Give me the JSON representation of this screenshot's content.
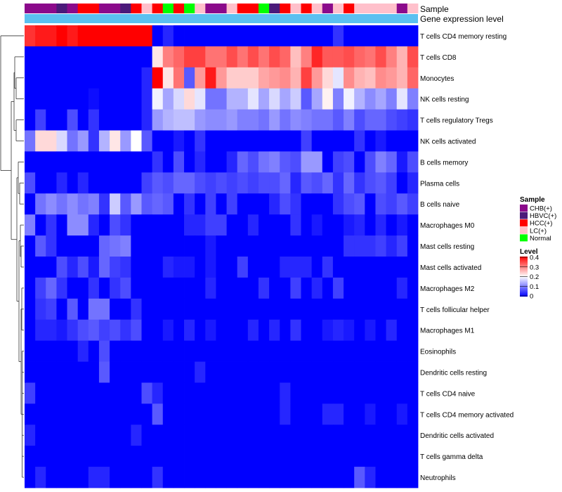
{
  "chart_data": {
    "type": "heatmap",
    "annotation_tracks": {
      "sample_label": "Sample",
      "gene_label": "Gene expression level",
      "sample_groups": [
        "CHB(+)",
        "CHB(+)",
        "CHB(+)",
        "HBVC(+)",
        "CHB(+)",
        "HCC(+)",
        "HCC(+)",
        "CHB(+)",
        "CHB(+)",
        "HBVC(+)",
        "HCC(+)",
        "LC(+)",
        "HCC(+)",
        "Normal",
        "HCC(+)",
        "Normal",
        "LC(+)",
        "CHB(+)",
        "CHB(+)",
        "LC(+)",
        "HCC(+)",
        "HCC(+)",
        "Normal",
        "HBVC(+)",
        "HCC(+)",
        "LC(+)",
        "HCC(+)",
        "LC(+)",
        "CHB(+)",
        "LC(+)",
        "HCC(+)",
        "LC(+)",
        "LC(+)",
        "LC(+)",
        "LC(+)",
        "CHB(+)",
        "LC(+)"
      ]
    },
    "rows": [
      "T cells CD4 memory resting",
      "T cells CD8",
      "Monocytes",
      "NK cells resting",
      "T cells regulatory  Tregs",
      "NK cells activated",
      "B cells memory",
      "Plasma cells",
      "B cells naive",
      "Macrophages M0",
      "Mast cells resting",
      "Mast cells activated",
      "Macrophages M2",
      "T cells follicular helper",
      "Macrophages M1",
      "Eosinophils",
      "Dendritic cells resting",
      "T cells CD4 naive",
      "T cells CD4 memory activated",
      "Dendritic cells activated",
      "T cells gamma delta",
      "Neutrophils"
    ],
    "values": [
      [
        0.36,
        0.38,
        0.38,
        0.4,
        0.38,
        0.4,
        0.4,
        0.4,
        0.4,
        0.4,
        0.4,
        0.4,
        0.0,
        0.03,
        0.0,
        0.0,
        0.0,
        0.0,
        0.0,
        0.0,
        0.0,
        0.0,
        0.0,
        0.0,
        0.0,
        0.0,
        0.0,
        0.0,
        0.0,
        0.04,
        0.0,
        0.0,
        0.0,
        0.0,
        0.0,
        0.0,
        0.0
      ],
      [
        0.0,
        0.0,
        0.0,
        0.0,
        0.0,
        0.0,
        0.0,
        0.0,
        0.0,
        0.0,
        0.0,
        0.0,
        0.22,
        0.3,
        0.32,
        0.35,
        0.35,
        0.31,
        0.31,
        0.34,
        0.31,
        0.34,
        0.31,
        0.34,
        0.32,
        0.25,
        0.3,
        0.37,
        0.33,
        0.33,
        0.34,
        0.32,
        0.31,
        0.34,
        0.3,
        0.26,
        0.34
      ],
      [
        0.0,
        0.0,
        0.0,
        0.0,
        0.0,
        0.0,
        0.0,
        0.0,
        0.0,
        0.0,
        0.0,
        0.03,
        0.4,
        0.22,
        0.31,
        0.07,
        0.28,
        0.38,
        0.28,
        0.24,
        0.24,
        0.24,
        0.27,
        0.28,
        0.29,
        0.26,
        0.35,
        0.28,
        0.23,
        0.18,
        0.29,
        0.26,
        0.25,
        0.29,
        0.28,
        0.26,
        0.32
      ],
      [
        0.0,
        0.0,
        0.0,
        0.0,
        0.0,
        0.0,
        0.01,
        0.0,
        0.0,
        0.0,
        0.0,
        0.03,
        0.19,
        0.13,
        0.17,
        0.23,
        0.18,
        0.09,
        0.09,
        0.14,
        0.14,
        0.18,
        0.13,
        0.17,
        0.13,
        0.16,
        0.07,
        0.13,
        0.21,
        0.1,
        0.19,
        0.14,
        0.11,
        0.13,
        0.1,
        0.18,
        0.1
      ],
      [
        0.0,
        0.05,
        0.0,
        0.0,
        0.06,
        0.0,
        0.04,
        0.0,
        0.0,
        0.0,
        0.0,
        0.03,
        0.12,
        0.14,
        0.15,
        0.15,
        0.12,
        0.11,
        0.11,
        0.12,
        0.1,
        0.1,
        0.09,
        0.12,
        0.09,
        0.11,
        0.1,
        0.09,
        0.09,
        0.07,
        0.1,
        0.06,
        0.08,
        0.08,
        0.06,
        0.05,
        0.04
      ],
      [
        0.09,
        0.23,
        0.23,
        0.17,
        0.09,
        0.12,
        0.04,
        0.14,
        0.22,
        0.12,
        0.2,
        0.07,
        0.0,
        0.0,
        0.02,
        0.0,
        0.04,
        0.0,
        0.0,
        0.0,
        0.0,
        0.0,
        0.0,
        0.0,
        0.0,
        0.0,
        0.05,
        0.0,
        0.0,
        0.0,
        0.0,
        0.04,
        0.0,
        0.02,
        0.0,
        0.0,
        0.0
      ],
      [
        0.0,
        0.0,
        0.0,
        0.0,
        0.0,
        0.0,
        0.0,
        0.0,
        0.0,
        0.0,
        0.0,
        0.0,
        0.04,
        0.0,
        0.06,
        0.0,
        0.03,
        0.0,
        0.0,
        0.03,
        0.08,
        0.06,
        0.09,
        0.1,
        0.07,
        0.06,
        0.12,
        0.12,
        0.0,
        0.05,
        0.06,
        0.0,
        0.06,
        0.1,
        0.08,
        0.02,
        0.06
      ],
      [
        0.06,
        0.0,
        0.0,
        0.03,
        0.0,
        0.03,
        0.0,
        0.0,
        0.0,
        0.0,
        0.0,
        0.05,
        0.07,
        0.06,
        0.08,
        0.08,
        0.06,
        0.05,
        0.06,
        0.05,
        0.06,
        0.05,
        0.06,
        0.06,
        0.08,
        0.03,
        0.07,
        0.06,
        0.08,
        0.04,
        0.08,
        0.04,
        0.06,
        0.07,
        0.05,
        0.0,
        0.03
      ],
      [
        0.0,
        0.09,
        0.11,
        0.09,
        0.11,
        0.09,
        0.1,
        0.04,
        0.16,
        0.07,
        0.12,
        0.07,
        0.08,
        0.07,
        0.0,
        0.04,
        0.0,
        0.05,
        0.0,
        0.05,
        0.0,
        0.0,
        0.0,
        0.03,
        0.06,
        0.04,
        0.0,
        0.0,
        0.0,
        0.04,
        0.06,
        0.07,
        0.0,
        0.06,
        0.05,
        0.07,
        0.05
      ],
      [
        0.1,
        0.0,
        0.04,
        0.0,
        0.11,
        0.11,
        0.03,
        0.0,
        0.06,
        0.04,
        0.0,
        0.0,
        0.0,
        0.0,
        0.0,
        0.03,
        0.03,
        0.05,
        0.05,
        0.0,
        0.0,
        0.03,
        0.0,
        0.0,
        0.0,
        0.04,
        0.0,
        0.02,
        0.0,
        0.0,
        0.02,
        0.03,
        0.0,
        0.03,
        0.0,
        0.02,
        0.0
      ],
      [
        0.0,
        0.07,
        0.04,
        0.0,
        0.0,
        0.0,
        0.0,
        0.08,
        0.09,
        0.1,
        0.0,
        0.0,
        0.0,
        0.0,
        0.0,
        0.0,
        0.0,
        0.02,
        0.0,
        0.0,
        0.0,
        0.0,
        0.0,
        0.0,
        0.0,
        0.0,
        0.0,
        0.0,
        0.0,
        0.0,
        0.04,
        0.04,
        0.04,
        0.05,
        0.03,
        0.05,
        0.0
      ],
      [
        0.0,
        0.0,
        0.0,
        0.06,
        0.03,
        0.06,
        0.02,
        0.08,
        0.05,
        0.04,
        0.0,
        0.0,
        0.0,
        0.03,
        0.02,
        0.02,
        0.0,
        0.02,
        0.0,
        0.0,
        0.05,
        0.0,
        0.0,
        0.0,
        0.03,
        0.03,
        0.03,
        0.0,
        0.04,
        0.0,
        0.0,
        0.0,
        0.0,
        0.0,
        0.0,
        0.0,
        0.0
      ],
      [
        0.0,
        0.05,
        0.08,
        0.04,
        0.0,
        0.0,
        0.04,
        0.0,
        0.04,
        0.06,
        0.0,
        0.0,
        0.0,
        0.0,
        0.0,
        0.0,
        0.0,
        0.03,
        0.0,
        0.0,
        0.0,
        0.0,
        0.04,
        0.0,
        0.0,
        0.05,
        0.0,
        0.03,
        0.0,
        0.05,
        0.0,
        0.0,
        0.0,
        0.0,
        0.0,
        0.03,
        0.0
      ],
      [
        0.0,
        0.04,
        0.05,
        0.0,
        0.07,
        0.0,
        0.09,
        0.09,
        0.0,
        0.0,
        0.04,
        0.0,
        0.0,
        0.0,
        0.0,
        0.0,
        0.0,
        0.0,
        0.0,
        0.0,
        0.0,
        0.0,
        0.0,
        0.0,
        0.0,
        0.0,
        0.0,
        0.0,
        0.0,
        0.0,
        0.0,
        0.0,
        0.0,
        0.0,
        0.0,
        0.0,
        0.0
      ],
      [
        0.0,
        0.03,
        0.03,
        0.02,
        0.04,
        0.06,
        0.07,
        0.05,
        0.06,
        0.04,
        0.06,
        0.0,
        0.0,
        0.02,
        0.0,
        0.03,
        0.0,
        0.02,
        0.0,
        0.0,
        0.0,
        0.03,
        0.0,
        0.03,
        0.0,
        0.04,
        0.0,
        0.0,
        0.02,
        0.03,
        0.02,
        0.0,
        0.02,
        0.0,
        0.03,
        0.0,
        0.0
      ],
      [
        0.0,
        0.0,
        0.0,
        0.0,
        0.0,
        0.03,
        0.0,
        0.06,
        0.0,
        0.0,
        0.0,
        0.0,
        0.0,
        0.0,
        0.0,
        0.0,
        0.0,
        0.0,
        0.0,
        0.0,
        0.0,
        0.0,
        0.0,
        0.0,
        0.0,
        0.0,
        0.0,
        0.0,
        0.0,
        0.0,
        0.0,
        0.0,
        0.0,
        0.0,
        0.0,
        0.0,
        0.0
      ],
      [
        0.0,
        0.0,
        0.0,
        0.0,
        0.0,
        0.0,
        0.0,
        0.07,
        0.0,
        0.0,
        0.0,
        0.0,
        0.0,
        0.0,
        0.0,
        0.0,
        0.03,
        0.0,
        0.0,
        0.0,
        0.0,
        0.0,
        0.0,
        0.0,
        0.0,
        0.0,
        0.0,
        0.0,
        0.0,
        0.0,
        0.0,
        0.0,
        0.0,
        0.0,
        0.0,
        0.0,
        0.0
      ],
      [
        0.05,
        0.0,
        0.0,
        0.0,
        0.0,
        0.0,
        0.0,
        0.0,
        0.0,
        0.0,
        0.0,
        0.06,
        0.03,
        0.0,
        0.0,
        0.0,
        0.0,
        0.0,
        0.0,
        0.0,
        0.0,
        0.0,
        0.0,
        0.0,
        0.03,
        0.0,
        0.0,
        0.0,
        0.0,
        0.0,
        0.0,
        0.0,
        0.0,
        0.0,
        0.0,
        0.0,
        0.0
      ],
      [
        0.0,
        0.0,
        0.0,
        0.0,
        0.0,
        0.0,
        0.0,
        0.0,
        0.0,
        0.0,
        0.0,
        0.0,
        0.07,
        0.0,
        0.0,
        0.0,
        0.0,
        0.0,
        0.0,
        0.0,
        0.0,
        0.0,
        0.0,
        0.0,
        0.03,
        0.0,
        0.0,
        0.0,
        0.03,
        0.03,
        0.0,
        0.0,
        0.02,
        0.0,
        0.0,
        0.02,
        0.0
      ],
      [
        0.03,
        0.0,
        0.0,
        0.0,
        0.0,
        0.0,
        0.0,
        0.0,
        0.0,
        0.0,
        0.03,
        0.0,
        0.0,
        0.0,
        0.0,
        0.0,
        0.0,
        0.0,
        0.0,
        0.0,
        0.0,
        0.0,
        0.0,
        0.0,
        0.0,
        0.0,
        0.0,
        0.0,
        0.0,
        0.0,
        0.0,
        0.0,
        0.0,
        0.0,
        0.0,
        0.0,
        0.0
      ],
      [
        0.0,
        0.0,
        0.0,
        0.0,
        0.0,
        0.0,
        0.0,
        0.0,
        0.0,
        0.0,
        0.0,
        0.0,
        0.0,
        0.0,
        0.0,
        0.0,
        0.0,
        0.0,
        0.0,
        0.0,
        0.0,
        0.0,
        0.0,
        0.0,
        0.0,
        0.0,
        0.0,
        0.0,
        0.0,
        0.0,
        0.0,
        0.0,
        0.0,
        0.0,
        0.0,
        0.0,
        0.0
      ],
      [
        0.0,
        0.03,
        0.0,
        0.0,
        0.0,
        0.0,
        0.03,
        0.03,
        0.0,
        0.0,
        0.0,
        0.0,
        0.04,
        0.0,
        0.0,
        0.0,
        0.0,
        0.0,
        0.0,
        0.0,
        0.0,
        0.0,
        0.0,
        0.0,
        0.0,
        0.0,
        0.0,
        0.0,
        0.0,
        0.0,
        0.0,
        0.07,
        0.03,
        0.0,
        0.0,
        0.0,
        0.0
      ]
    ],
    "color_scale": {
      "min": 0,
      "max": 0.4,
      "colors": [
        "#0000ff",
        "#ffffff",
        "#ff0000"
      ]
    },
    "legend": {
      "sample_title": "Sample",
      "sample_entries": [
        {
          "label": "CHB(+)",
          "color": "#8b0a8b"
        },
        {
          "label": "HBVC(+)",
          "color": "#4b1a7a"
        },
        {
          "label": "HCC(+)",
          "color": "#ff0000"
        },
        {
          "label": "LC(+)",
          "color": "#ffc0cb"
        },
        {
          "label": "Normal",
          "color": "#00ff00"
        }
      ],
      "level_title": "Level",
      "level_ticks": [
        0.4,
        0.3,
        0.2,
        0.1,
        0
      ],
      "level_tick_labels": [
        "0.4",
        "0.3",
        "0.2",
        "0.1",
        "0"
      ]
    },
    "gene_track_color": "#5bc0f0"
  }
}
